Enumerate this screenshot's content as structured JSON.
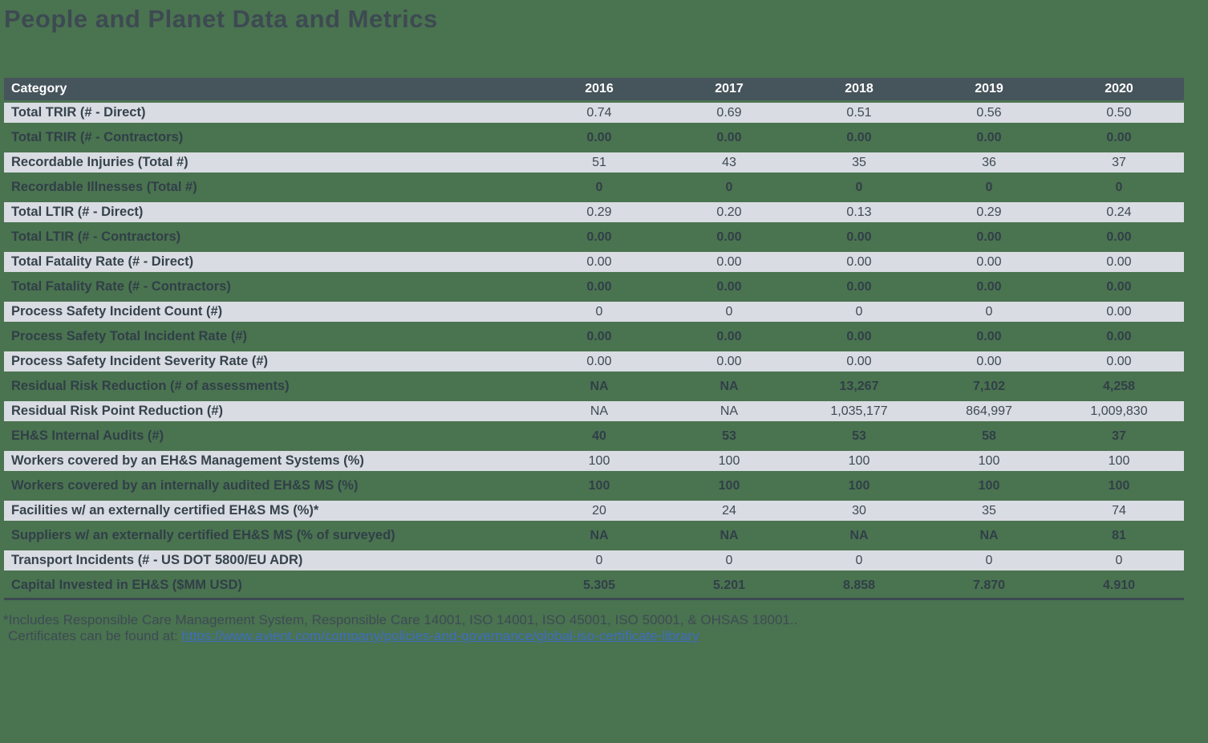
{
  "page": {
    "title": "People and Planet Data and Metrics",
    "background_color": "#4a7350",
    "header_color": "#46545c",
    "light_row_color": "#d9dce2",
    "link_color": "#3e6dbf"
  },
  "table": {
    "columns": [
      "Category",
      "2016",
      "2017",
      "2018",
      "2019",
      "2020"
    ],
    "rows": [
      {
        "label": "Total TRIR (# - Direct)",
        "values": [
          "0.74",
          "0.69",
          "0.51",
          "0.56",
          "0.50"
        ]
      },
      {
        "label": "Total TRIR (# - Contractors)",
        "values": [
          "0.00",
          "0.00",
          "0.00",
          "0.00",
          "0.00"
        ]
      },
      {
        "label": "Recordable Injuries (Total #)",
        "values": [
          "51",
          "43",
          "35",
          "36",
          "37"
        ]
      },
      {
        "label": "Recordable Illnesses (Total #)",
        "values": [
          "0",
          "0",
          "0",
          "0",
          "0"
        ]
      },
      {
        "label": "Total LTIR (# - Direct)",
        "values": [
          "0.29",
          "0.20",
          "0.13",
          "0.29",
          "0.24"
        ]
      },
      {
        "label": "Total LTIR (# - Contractors)",
        "values": [
          "0.00",
          "0.00",
          "0.00",
          "0.00",
          "0.00"
        ]
      },
      {
        "label": "Total Fatality Rate (# - Direct)",
        "values": [
          "0.00",
          "0.00",
          "0.00",
          "0.00",
          "0.00"
        ]
      },
      {
        "label": "Total Fatality Rate (# - Contractors)",
        "values": [
          "0.00",
          "0.00",
          "0.00",
          "0.00",
          "0.00"
        ]
      },
      {
        "label": "Process Safety Incident Count (#)",
        "values": [
          "0",
          "0",
          "0",
          "0",
          "0.00"
        ]
      },
      {
        "label": "Process Safety Total Incident Rate (#)",
        "values": [
          "0.00",
          "0.00",
          "0.00",
          "0.00",
          "0.00"
        ]
      },
      {
        "label": "Process Safety Incident Severity Rate (#)",
        "values": [
          "0.00",
          "0.00",
          "0.00",
          "0.00",
          "0.00"
        ]
      },
      {
        "label": "Residual Risk Reduction (# of assessments)",
        "values": [
          "NA",
          "NA",
          "13,267",
          "7,102",
          "4,258"
        ]
      },
      {
        "label": "Residual Risk Point Reduction (#)",
        "values": [
          "NA",
          "NA",
          "1,035,177",
          "864,997",
          "1,009,830"
        ]
      },
      {
        "label": "EH&S Internal Audits (#)",
        "values": [
          "40",
          "53",
          "53",
          "58",
          "37"
        ]
      },
      {
        "label": "Workers covered by an EH&S Management Systems (%)",
        "values": [
          "100",
          "100",
          "100",
          "100",
          "100"
        ]
      },
      {
        "label": "Workers covered by an internally audited EH&S MS (%)",
        "values": [
          "100",
          "100",
          "100",
          "100",
          "100"
        ]
      },
      {
        "label": "Facilities w/ an externally certified EH&S MS (%)*",
        "values": [
          "20",
          "24",
          "30",
          "35",
          "74"
        ]
      },
      {
        "label": "Suppliers w/ an externally certified EH&S MS (% of surveyed)",
        "values": [
          "NA",
          "NA",
          "NA",
          "NA",
          "81"
        ]
      },
      {
        "label": "Transport Incidents (# - US DOT 5800/EU ADR)",
        "values": [
          "0",
          "0",
          "0",
          "0",
          "0"
        ]
      },
      {
        "label": "Capital Invested in EH&S ($MM USD)",
        "values": [
          "5.305",
          "5.201",
          "8.858",
          "7.870",
          "4.910"
        ]
      }
    ]
  },
  "footnote": {
    "line1": "*Includes Responsible Care Management System, Responsible Care 14001, ISO 14001, ISO 45001, ISO 50001, & OHSAS 18001..",
    "line2_prefix": "Certificates can be found at: ",
    "link_text": "https://www.avient.com/company/policies-and-governance/global-iso-certificate-library"
  }
}
